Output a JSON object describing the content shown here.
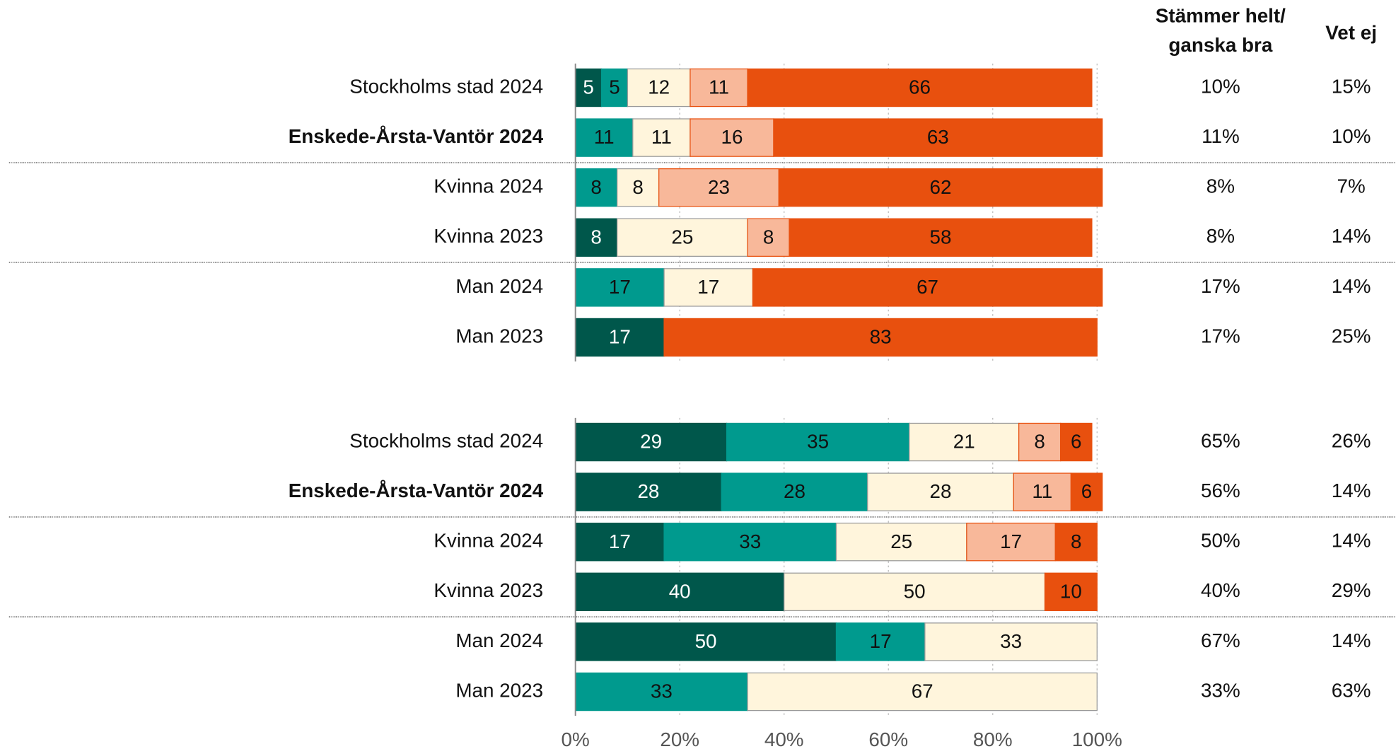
{
  "side_headers": [
    [
      "Stämmer helt/",
      "ganska bra"
    ],
    [
      "Vet ej"
    ]
  ],
  "chart_data": [
    {
      "type": "bar",
      "orientation": "horizontal",
      "stacked": true,
      "categories": [
        "Stockholms stad 2024",
        "Enskede-Årsta-Vantör 2024",
        "Kvinna 2024",
        "Kvinna 2023",
        "Man 2024",
        "Man 2023"
      ],
      "highlight_index": 1,
      "group_breaks": [
        2,
        4
      ],
      "xlim": [
        0,
        100
      ],
      "xticks": [
        0,
        20,
        40,
        60,
        80,
        100
      ],
      "grid": true,
      "series": [
        {
          "color": "#00574b",
          "label_color": "#ffffff",
          "edge": "#00574b",
          "values": [
            5,
            null,
            null,
            8,
            null,
            17
          ]
        },
        {
          "color": "#009a8e",
          "label_color": "#111111",
          "edge": "#009a8e",
          "values": [
            5,
            11,
            8,
            null,
            17,
            null
          ]
        },
        {
          "color": "#fff5dc",
          "label_color": "#111111",
          "edge": "#9a9a9a",
          "values": [
            12,
            11,
            8,
            25,
            17,
            null
          ]
        },
        {
          "color": "#f8b89a",
          "label_color": "#111111",
          "edge": "#e8500e",
          "values": [
            11,
            16,
            23,
            8,
            null,
            null
          ]
        },
        {
          "color": "#e8500e",
          "label_color": "#111111",
          "edge": "#e8500e",
          "values": [
            66,
            63,
            62,
            58,
            67,
            83
          ]
        }
      ],
      "side_values": [
        [
          "10%",
          "15%"
        ],
        [
          "11%",
          "10%"
        ],
        [
          "8%",
          "7%"
        ],
        [
          "8%",
          "14%"
        ],
        [
          "17%",
          "14%"
        ],
        [
          "17%",
          "25%"
        ]
      ]
    },
    {
      "type": "bar",
      "orientation": "horizontal",
      "stacked": true,
      "categories": [
        "Stockholms stad 2024",
        "Enskede-Årsta-Vantör 2024",
        "Kvinna 2024",
        "Kvinna 2023",
        "Man 2024",
        "Man 2023"
      ],
      "highlight_index": 1,
      "group_breaks": [
        2,
        4
      ],
      "xlim": [
        0,
        100
      ],
      "xticks": [
        {
          "value": 0,
          "label": "0%"
        },
        {
          "value": 20,
          "label": "20%"
        },
        {
          "value": 40,
          "label": "40%"
        },
        {
          "value": 60,
          "label": "60%"
        },
        {
          "value": 80,
          "label": "80%"
        },
        {
          "value": 100,
          "label": "100%"
        }
      ],
      "grid": true,
      "series": [
        {
          "color": "#00574b",
          "label_color": "#ffffff",
          "edge": "#00574b",
          "values": [
            29,
            28,
            17,
            40,
            50,
            null
          ]
        },
        {
          "color": "#009a8e",
          "label_color": "#111111",
          "edge": "#009a8e",
          "values": [
            35,
            28,
            33,
            null,
            17,
            33
          ]
        },
        {
          "color": "#fff5dc",
          "label_color": "#111111",
          "edge": "#9a9a9a",
          "values": [
            21,
            28,
            25,
            50,
            33,
            67
          ]
        },
        {
          "color": "#f8b89a",
          "label_color": "#111111",
          "edge": "#e8500e",
          "values": [
            8,
            11,
            17,
            null,
            null,
            null
          ]
        },
        {
          "color": "#e8500e",
          "label_color": "#111111",
          "edge": "#e8500e",
          "values": [
            6,
            6,
            8,
            10,
            null,
            null
          ]
        }
      ],
      "side_values": [
        [
          "65%",
          "26%"
        ],
        [
          "56%",
          "14%"
        ],
        [
          "50%",
          "14%"
        ],
        [
          "40%",
          "29%"
        ],
        [
          "67%",
          "14%"
        ],
        [
          "33%",
          "63%"
        ]
      ]
    }
  ]
}
